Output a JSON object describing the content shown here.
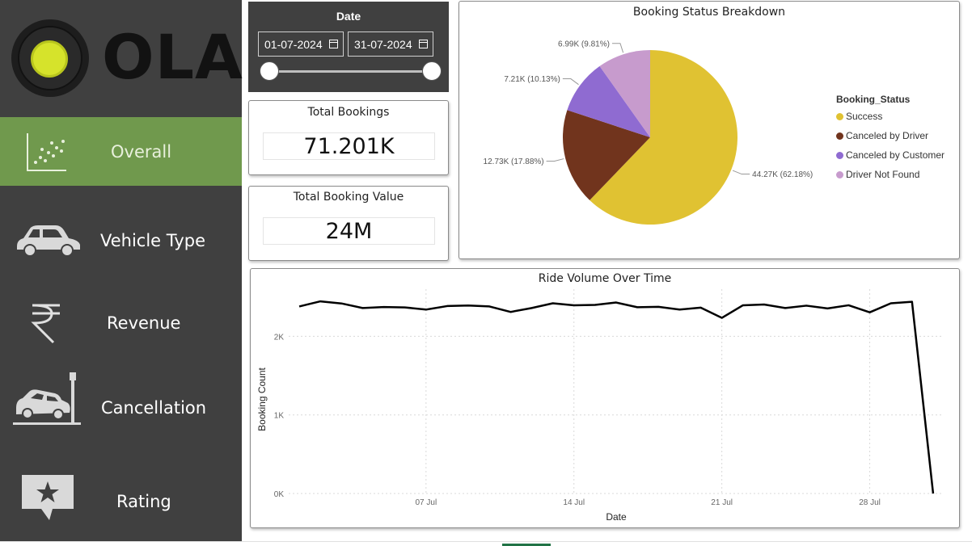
{
  "brand": {
    "logo_text": "OLA",
    "logo_accent": "#d6e32b"
  },
  "sidebar": {
    "background": "#404040",
    "active_color": "#70994d",
    "items": [
      {
        "label": "Overall",
        "icon": "scatter-chart-icon",
        "active": true
      },
      {
        "label": "Vehicle Type",
        "icon": "car-icon",
        "active": false
      },
      {
        "label": "Revenue",
        "icon": "rupee-icon",
        "active": false
      },
      {
        "label": "Cancellation",
        "icon": "car-crash-icon",
        "active": false
      },
      {
        "label": "Rating",
        "icon": "star-review-icon",
        "active": false
      }
    ]
  },
  "date_slicer": {
    "title": "Date",
    "start": "01-07-2024",
    "end": "31-07-2024"
  },
  "kpis": {
    "total_bookings": {
      "title": "Total Bookings",
      "value": "71.201K"
    },
    "total_booking_value": {
      "title": "Total Booking Value",
      "value": "24M"
    }
  },
  "chart_data": [
    {
      "type": "pie",
      "title": "Booking Status Breakdown",
      "legend_title": "Booking_Status",
      "legend_position": "right",
      "slices": [
        {
          "name": "Success",
          "value": 44270,
          "label": "44.27K (62.18%)",
          "color": "#e0c232"
        },
        {
          "name": "Canceled by Driver",
          "value": 12730,
          "label": "12.73K (17.88%)",
          "color": "#71341d"
        },
        {
          "name": "Canceled by Customer",
          "value": 7210,
          "label": "7.21K (10.13%)",
          "color": "#8f6bd1"
        },
        {
          "name": "Driver Not Found",
          "value": 6990,
          "label": "6.99K (9.81%)",
          "color": "#c79bcd"
        }
      ]
    },
    {
      "type": "line",
      "title": "Ride Volume Over Time",
      "xlabel": "Date",
      "ylabel": "Booking Count",
      "ylim": [
        0,
        2600
      ],
      "yticks": [
        0,
        1000,
        2000
      ],
      "ytick_labels": [
        "0K",
        "1K",
        "2K"
      ],
      "xtick_labels": [
        {
          "day": 7,
          "label": "07 Jul"
        },
        {
          "day": 14,
          "label": "14 Jul"
        },
        {
          "day": 21,
          "label": "21 Jul"
        },
        {
          "day": 28,
          "label": "28 Jul"
        }
      ],
      "grid": true,
      "line_color": "#000000",
      "x": [
        1,
        2,
        3,
        4,
        5,
        6,
        7,
        8,
        9,
        10,
        11,
        12,
        13,
        14,
        15,
        16,
        17,
        18,
        19,
        20,
        21,
        22,
        23,
        24,
        25,
        26,
        27,
        28,
        29,
        30,
        31
      ],
      "y": [
        2380,
        2445,
        2418,
        2360,
        2372,
        2368,
        2340,
        2385,
        2392,
        2380,
        2310,
        2360,
        2420,
        2395,
        2400,
        2430,
        2370,
        2375,
        2340,
        2365,
        2235,
        2395,
        2405,
        2360,
        2390,
        2355,
        2395,
        2305,
        2420,
        2440,
        0
      ]
    }
  ]
}
